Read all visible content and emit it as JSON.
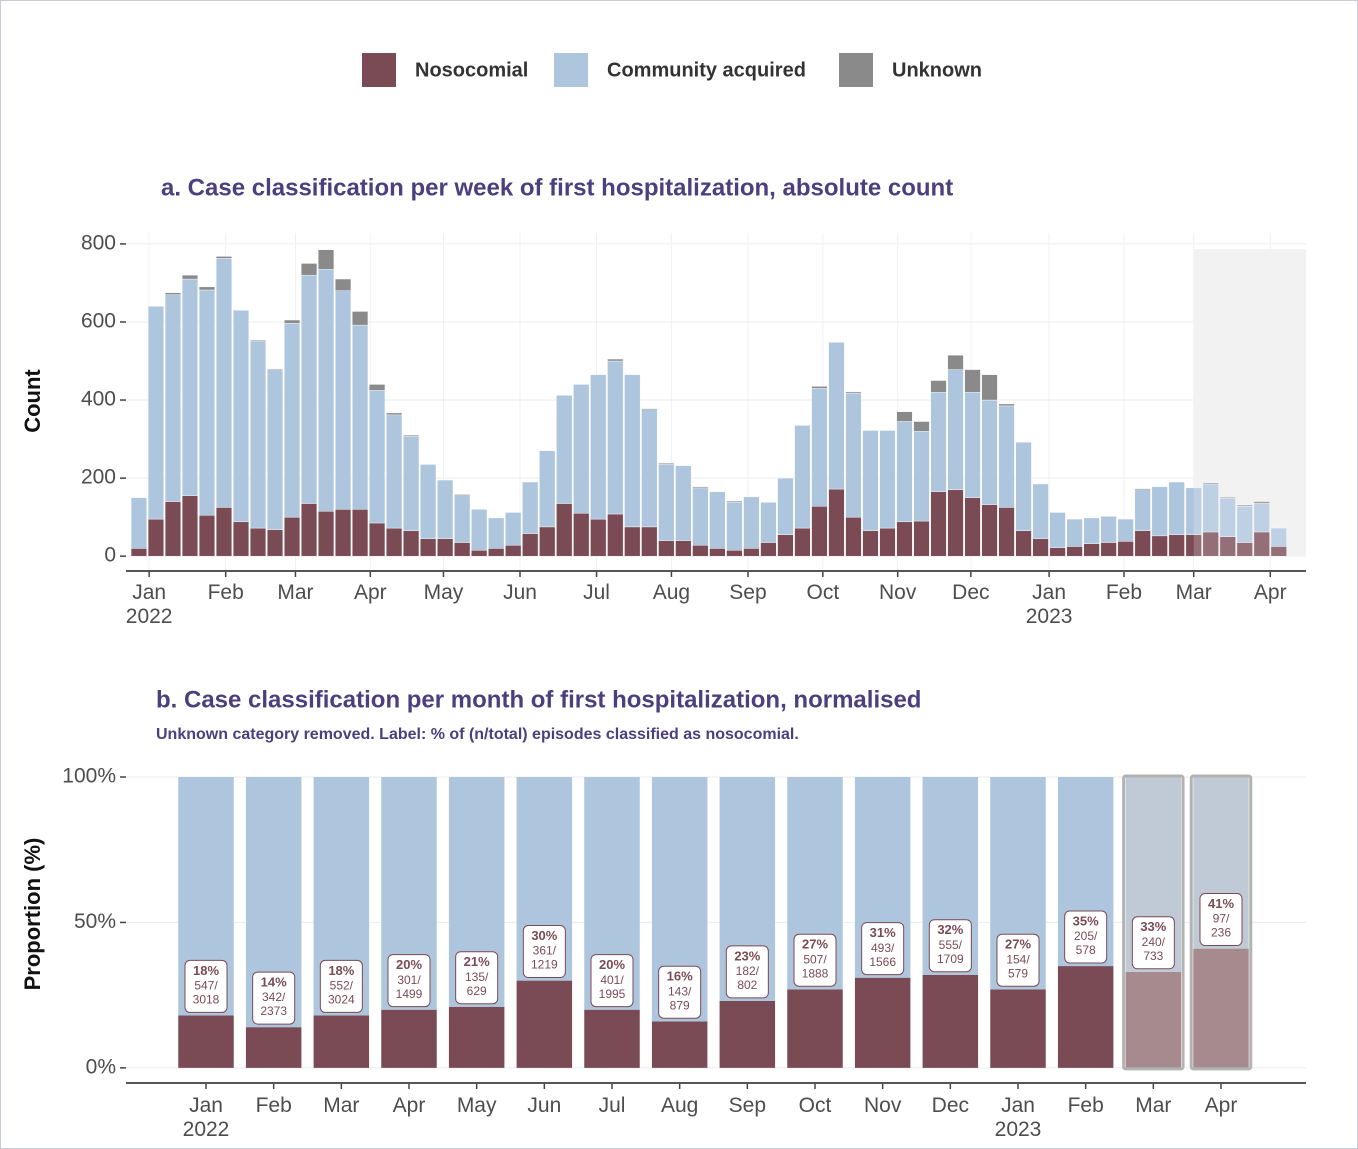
{
  "chart_data": [
    {
      "type": "bar",
      "stacked": true,
      "title": "a. Case classification per week of first hospitalization, absolute count",
      "y_label": "Count",
      "legend": "top",
      "grid": true,
      "x": [
        0,
        1,
        2,
        3,
        4,
        5,
        6,
        7,
        8,
        9,
        10,
        11,
        12,
        13,
        14,
        15,
        16,
        17,
        18,
        19,
        20,
        21,
        22,
        23,
        24,
        25,
        26,
        27,
        28,
        29,
        30,
        31,
        32,
        33,
        34,
        35,
        36,
        37,
        38,
        39,
        40,
        41,
        42,
        43,
        44,
        45,
        46,
        47,
        48,
        49,
        50,
        51,
        52,
        53,
        54,
        55,
        56,
        57,
        58,
        59,
        60,
        61,
        62,
        63,
        64,
        65,
        66,
        67
      ],
      "xlim": [
        -0.76,
        68.6
      ],
      "xticks": [
        {
          "value": 0.6,
          "label": "Jan\n2022"
        },
        {
          "value": 5.1,
          "label": "Feb"
        },
        {
          "value": 9.2,
          "label": "Mar"
        },
        {
          "value": 13.6,
          "label": "Apr"
        },
        {
          "value": 17.9,
          "label": "May"
        },
        {
          "value": 22.4,
          "label": "Jun"
        },
        {
          "value": 26.9,
          "label": "Jul"
        },
        {
          "value": 31.3,
          "label": "Aug"
        },
        {
          "value": 35.8,
          "label": "Sep"
        },
        {
          "value": 40.2,
          "label": "Oct"
        },
        {
          "value": 44.6,
          "label": "Nov"
        },
        {
          "value": 48.9,
          "label": "Dec"
        },
        {
          "value": 53.5,
          "label": "Jan\n2023"
        },
        {
          "value": 57.9,
          "label": "Feb"
        },
        {
          "value": 62,
          "label": "Mar"
        },
        {
          "value": 66.5,
          "label": "Apr"
        }
      ],
      "ylim": [
        -38,
        828
      ],
      "yticks": [
        0,
        200,
        400,
        600,
        800
      ],
      "shaded_region": {
        "x": [
          62,
          68.6
        ],
        "y": [
          0,
          787
        ],
        "color": "#efefef"
      },
      "series": [
        {
          "name": "Nosocomial",
          "color": "#7b4b55",
          "values": [
            20,
            95,
            140,
            155,
            105,
            125,
            88,
            72,
            68,
            100,
            135,
            115,
            120,
            120,
            85,
            72,
            65,
            45,
            45,
            35,
            15,
            20,
            28,
            58,
            75,
            135,
            110,
            95,
            108,
            75,
            75,
            40,
            40,
            28,
            20,
            15,
            20,
            35,
            55,
            72,
            128,
            172,
            100,
            65,
            72,
            88,
            90,
            165,
            170,
            150,
            132,
            125,
            65,
            45,
            22,
            25,
            32,
            35,
            38,
            65,
            52,
            55,
            55,
            62,
            50,
            35,
            62,
            25
          ]
        },
        {
          "name": "Community acquired",
          "color": "#aec5de",
          "values": [
            130,
            545,
            530,
            555,
            577,
            638,
            542,
            478,
            410,
            497,
            585,
            620,
            560,
            472,
            340,
            290,
            242,
            190,
            150,
            120,
            105,
            78,
            84,
            132,
            195,
            277,
            330,
            370,
            392,
            390,
            300,
            195,
            192,
            147,
            145,
            123,
            132,
            103,
            145,
            263,
            302,
            376,
            318,
            257,
            250,
            257,
            230,
            255,
            308,
            270,
            268,
            260,
            227,
            140,
            90,
            70,
            66,
            67,
            57,
            105,
            126,
            135,
            120,
            123,
            98,
            93,
            73,
            47
          ]
        },
        {
          "name": "Unknown",
          "color": "#8a8a8a",
          "values": [
            0,
            0,
            5,
            10,
            8,
            5,
            0,
            3,
            2,
            8,
            30,
            50,
            30,
            35,
            15,
            5,
            3,
            0,
            0,
            3,
            0,
            0,
            0,
            0,
            0,
            0,
            0,
            0,
            5,
            0,
            3,
            3,
            0,
            3,
            0,
            3,
            0,
            0,
            0,
            0,
            5,
            0,
            3,
            0,
            0,
            25,
            25,
            30,
            37,
            58,
            65,
            5,
            0,
            0,
            0,
            0,
            0,
            0,
            0,
            3,
            0,
            0,
            0,
            3,
            3,
            3,
            5,
            0
          ]
        }
      ]
    },
    {
      "type": "bar",
      "stacked": true,
      "title": "b. Case classification per month of first hospitalization, normalised",
      "subtitle": "Unknown category removed. Label: % of (n/total) episodes classified as nosocomial.",
      "y_label": "Proportion (%)",
      "grid": true,
      "categories": [
        "Jan\n2022",
        "Feb",
        "Mar",
        "Apr",
        "May",
        "Jun",
        "Jul",
        "Aug",
        "Sep",
        "Oct",
        "Nov",
        "Dec",
        "Jan\n2023",
        "Feb",
        "Mar",
        "Apr"
      ],
      "ylim": [
        -5.2,
        105.5
      ],
      "yticks": [
        {
          "value": 0,
          "label": "0%"
        },
        {
          "value": 50,
          "label": "50%"
        },
        {
          "value": 100,
          "label": "100%"
        }
      ],
      "faded": [
        false,
        false,
        false,
        false,
        false,
        false,
        false,
        false,
        false,
        false,
        false,
        false,
        false,
        false,
        true,
        true
      ],
      "series": [
        {
          "name": "Nosocomial",
          "color": "#7b4b55",
          "faded_color": "#a68a8e",
          "values": [
            18,
            14,
            18,
            20,
            21,
            30,
            20,
            16,
            23,
            27,
            31,
            32,
            27,
            35,
            33,
            41
          ],
          "value_labels": [
            "18%",
            "14%",
            "18%",
            "20%",
            "21%",
            "30%",
            "20%",
            "16%",
            "23%",
            "27%",
            "31%",
            "32%",
            "27%",
            "35%",
            "33%",
            "41%"
          ],
          "n_labels": [
            "547/",
            "342/",
            "552/",
            "301/",
            "135/",
            "361/",
            "401/",
            "143/",
            "182/",
            "507/",
            "493/",
            "555/",
            "154/",
            "205/",
            "240/",
            "97/"
          ],
          "totals": [
            3018,
            2373,
            3024,
            1499,
            629,
            1219,
            1995,
            879,
            802,
            1888,
            1566,
            1709,
            579,
            578,
            733,
            236
          ]
        },
        {
          "name": "Community acquired",
          "color": "#aec5de",
          "faded_color": "#c0cad6",
          "values": [
            82,
            86,
            82,
            80,
            79,
            70,
            80,
            84,
            77,
            73,
            69,
            68,
            73,
            65,
            67,
            59
          ]
        }
      ]
    }
  ]
}
